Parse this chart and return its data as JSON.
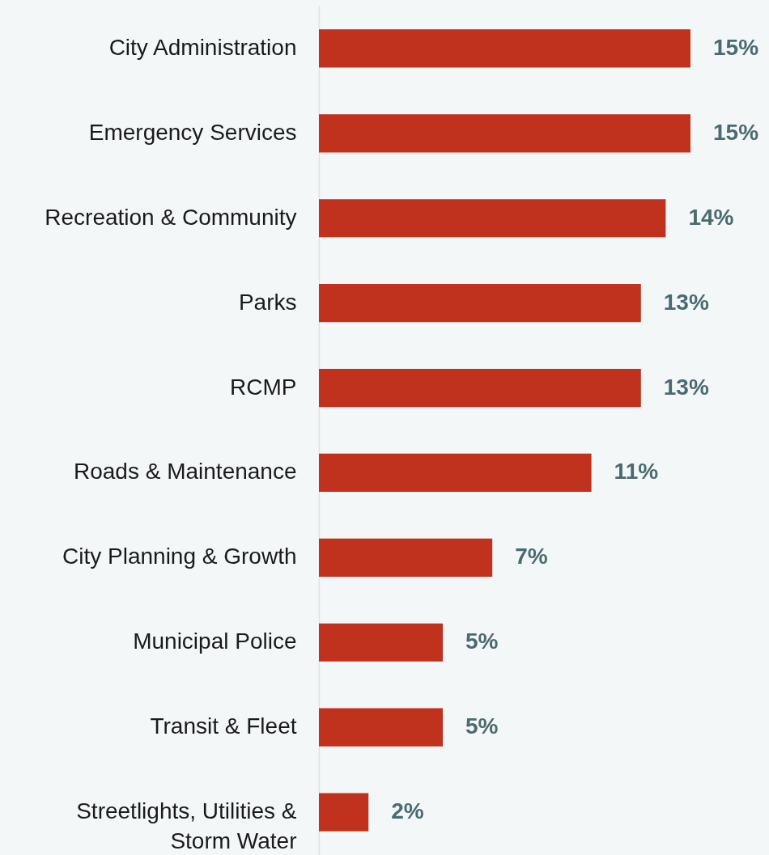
{
  "chart_data": {
    "type": "bar",
    "orientation": "horizontal",
    "categories": [
      "City Administration",
      "Emergency Services",
      "Recreation & Community",
      "Parks",
      "RCMP",
      "Roads & Maintenance",
      "City Planning & Growth",
      "Municipal Police",
      "Transit & Fleet",
      "Streetlights, Utilities & Storm Water"
    ],
    "values": [
      15,
      15,
      14,
      13,
      13,
      11,
      7,
      5,
      5,
      2
    ],
    "value_labels": [
      "15%",
      "15%",
      "14%",
      "13%",
      "13%",
      "11%",
      "7%",
      "5%",
      "5%",
      "2%"
    ],
    "color": "#c0311e"
  }
}
